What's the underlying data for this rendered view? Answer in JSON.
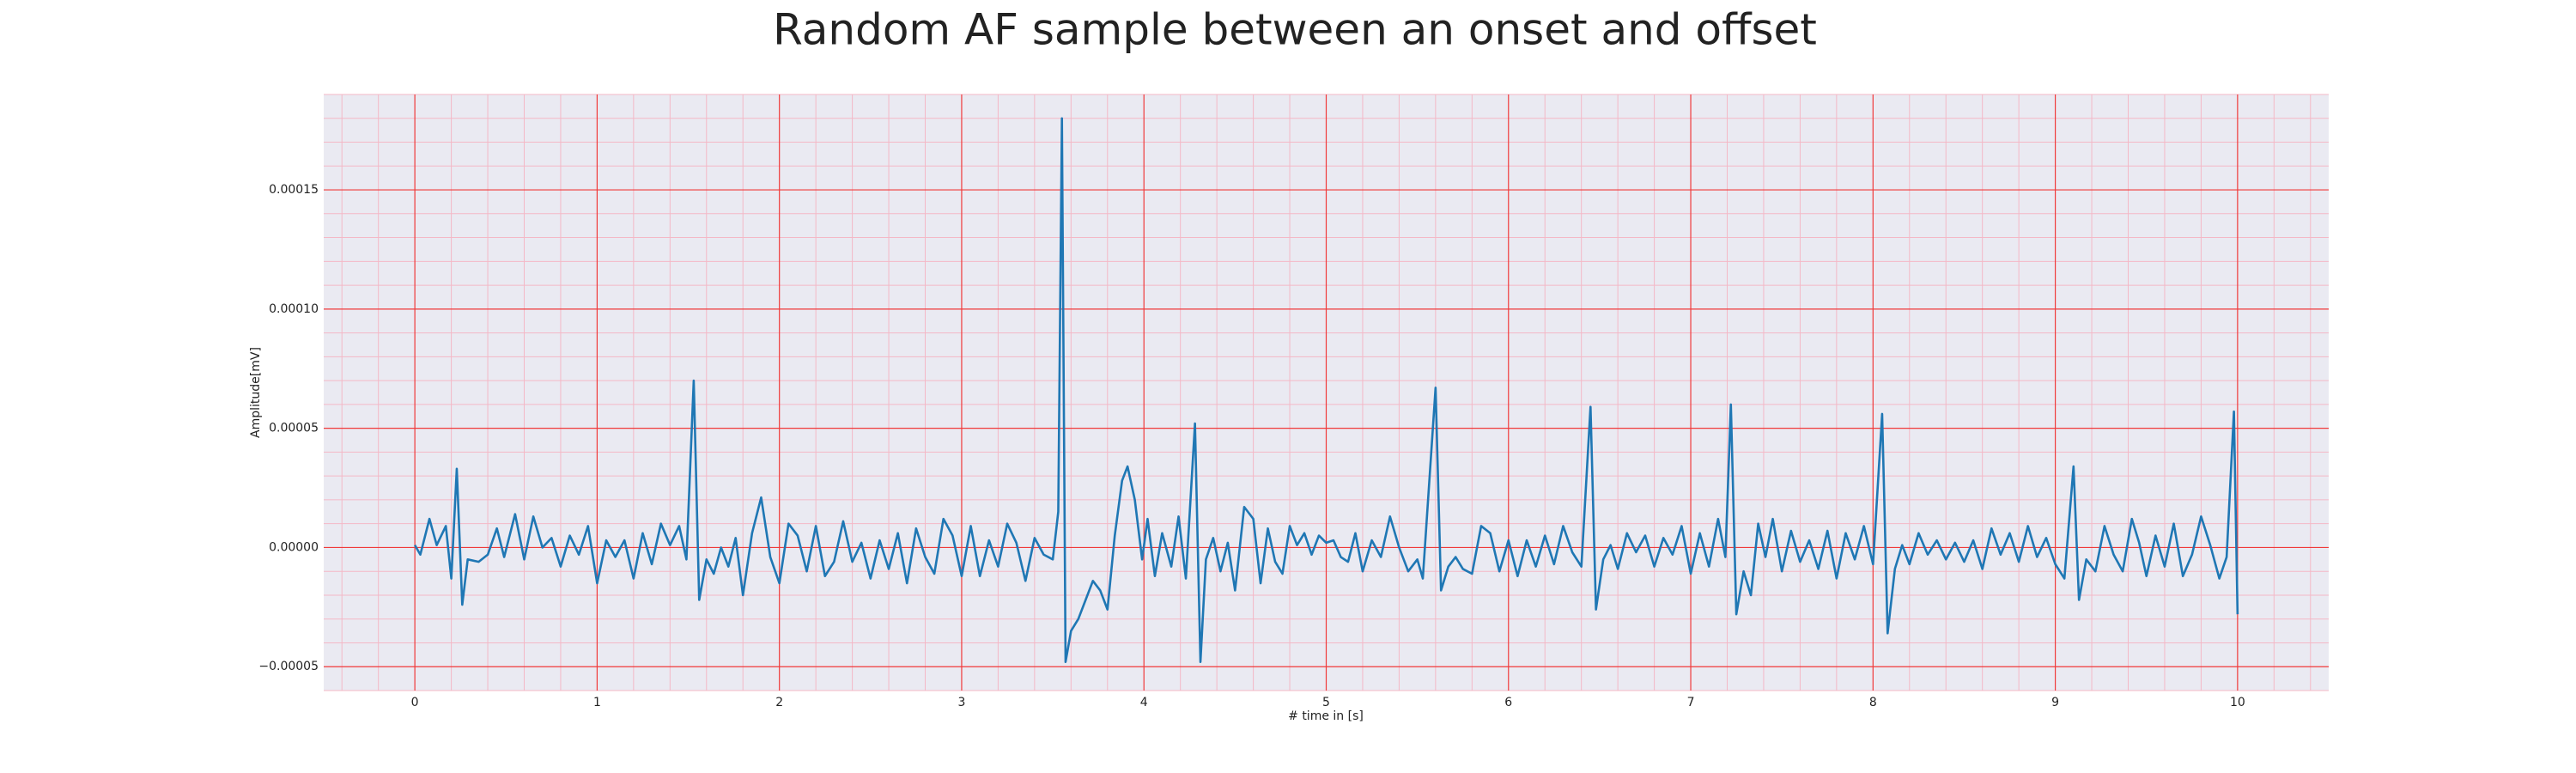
{
  "chart_data": {
    "type": "line",
    "title": "Random AF sample between an onset and offset",
    "xlabel": "# time in [s]",
    "ylabel": "Amplitude[mV]",
    "color": "#1f77b4",
    "grid": true,
    "xlim": [
      -0.5,
      10.5
    ],
    "ylim": [
      -6e-05,
      0.00019
    ],
    "xticks": [
      0,
      1,
      2,
      3,
      4,
      5,
      6,
      7,
      8,
      9,
      10
    ],
    "yticks": [
      {
        "value": -5e-05,
        "label": "−0.00005"
      },
      {
        "value": 0,
        "label": "0.00000"
      },
      {
        "value": 5e-05,
        "label": "0.00005"
      },
      {
        "value": 0.0001,
        "label": "0.00010"
      },
      {
        "value": 0.00015,
        "label": "0.00015"
      }
    ],
    "x": [
      0.0,
      0.03,
      0.08,
      0.12,
      0.17,
      0.2,
      0.23,
      0.26,
      0.29,
      0.35,
      0.4,
      0.45,
      0.49,
      0.55,
      0.6,
      0.65,
      0.7,
      0.75,
      0.8,
      0.85,
      0.9,
      0.95,
      1.0,
      1.05,
      1.1,
      1.15,
      1.2,
      1.25,
      1.3,
      1.35,
      1.4,
      1.45,
      1.49,
      1.53,
      1.56,
      1.6,
      1.64,
      1.68,
      1.72,
      1.76,
      1.8,
      1.85,
      1.9,
      1.95,
      2.0,
      2.05,
      2.1,
      2.15,
      2.2,
      2.25,
      2.3,
      2.35,
      2.4,
      2.45,
      2.5,
      2.55,
      2.6,
      2.65,
      2.7,
      2.75,
      2.8,
      2.85,
      2.9,
      2.95,
      3.0,
      3.05,
      3.1,
      3.15,
      3.2,
      3.25,
      3.3,
      3.35,
      3.4,
      3.45,
      3.5,
      3.53,
      3.55,
      3.57,
      3.6,
      3.64,
      3.68,
      3.72,
      3.76,
      3.8,
      3.84,
      3.88,
      3.91,
      3.95,
      3.99,
      4.02,
      4.06,
      4.1,
      4.15,
      4.19,
      4.23,
      4.28,
      4.31,
      4.34,
      4.38,
      4.42,
      4.46,
      4.5,
      4.55,
      4.6,
      4.64,
      4.68,
      4.72,
      4.76,
      4.8,
      4.84,
      4.88,
      4.92,
      4.96,
      5.0,
      5.04,
      5.08,
      5.12,
      5.16,
      5.2,
      5.25,
      5.3,
      5.35,
      5.4,
      5.45,
      5.5,
      5.53,
      5.6,
      5.63,
      5.67,
      5.71,
      5.75,
      5.8,
      5.85,
      5.9,
      5.95,
      6.0,
      6.05,
      6.1,
      6.15,
      6.2,
      6.25,
      6.3,
      6.35,
      6.4,
      6.45,
      6.48,
      6.52,
      6.56,
      6.6,
      6.65,
      6.7,
      6.75,
      6.8,
      6.85,
      6.9,
      6.95,
      7.0,
      7.05,
      7.1,
      7.15,
      7.19,
      7.22,
      7.25,
      7.29,
      7.33,
      7.37,
      7.41,
      7.45,
      7.5,
      7.55,
      7.6,
      7.65,
      7.7,
      7.75,
      7.8,
      7.85,
      7.9,
      7.95,
      8.0,
      8.05,
      8.08,
      8.12,
      8.16,
      8.2,
      8.25,
      8.3,
      8.35,
      8.4,
      8.45,
      8.5,
      8.55,
      8.6,
      8.65,
      8.7,
      8.75,
      8.8,
      8.85,
      8.9,
      8.95,
      9.0,
      9.05,
      9.1,
      9.13,
      9.17,
      9.22,
      9.27,
      9.32,
      9.37,
      9.42,
      9.46,
      9.5,
      9.55,
      9.6,
      9.65,
      9.7,
      9.75,
      9.8,
      9.85,
      9.9,
      9.94,
      9.98,
      10.0
    ],
    "values": [
      1e-06,
      -3e-06,
      1.2e-05,
      1e-06,
      9e-06,
      -1.3e-05,
      3.3e-05,
      -2.4e-05,
      -5e-06,
      -6e-06,
      -3e-06,
      8e-06,
      -4e-06,
      1.4e-05,
      -5e-06,
      1.3e-05,
      0,
      4e-06,
      -8e-06,
      5e-06,
      -3e-06,
      9e-06,
      -1.5e-05,
      3e-06,
      -4e-06,
      3e-06,
      -1.3e-05,
      6e-06,
      -7e-06,
      1e-05,
      1e-06,
      9e-06,
      -5e-06,
      7e-05,
      -2.2e-05,
      -5e-06,
      -1.1e-05,
      0,
      -8e-06,
      4e-06,
      -2e-05,
      6e-06,
      2.1e-05,
      -4e-06,
      -1.5e-05,
      1e-05,
      5e-06,
      -1e-05,
      9e-06,
      -1.2e-05,
      -6e-06,
      1.1e-05,
      -6e-06,
      2e-06,
      -1.3e-05,
      3e-06,
      -9e-06,
      6e-06,
      -1.5e-05,
      8e-06,
      -4e-06,
      -1.1e-05,
      1.2e-05,
      5e-06,
      -1.2e-05,
      9e-06,
      -1.2e-05,
      3e-06,
      -8e-06,
      1e-05,
      2e-06,
      -1.4e-05,
      4e-06,
      -3e-06,
      -5e-06,
      1.5e-05,
      0.00018,
      -4.8e-05,
      -3.5e-05,
      -3e-05,
      -2.2e-05,
      -1.4e-05,
      -1.8e-05,
      -2.6e-05,
      5e-06,
      2.8e-05,
      3.4e-05,
      2e-05,
      -5e-06,
      1.2e-05,
      -1.2e-05,
      6e-06,
      -8e-06,
      1.3e-05,
      -1.3e-05,
      5.2e-05,
      -4.8e-05,
      -5e-06,
      4e-06,
      -1e-05,
      2e-06,
      -1.8e-05,
      1.7e-05,
      1.2e-05,
      -1.5e-05,
      8e-06,
      -6e-06,
      -1.1e-05,
      9e-06,
      1e-06,
      6e-06,
      -3e-06,
      5e-06,
      2e-06,
      3e-06,
      -4e-06,
      -6e-06,
      6e-06,
      -1e-05,
      3e-06,
      -4e-06,
      1.3e-05,
      0,
      -1e-05,
      -5e-06,
      -1.3e-05,
      6.7e-05,
      -1.8e-05,
      -8e-06,
      -4e-06,
      -9e-06,
      -1.1e-05,
      9e-06,
      6e-06,
      -1e-05,
      3e-06,
      -1.2e-05,
      3e-06,
      -8e-06,
      5e-06,
      -7e-06,
      9e-06,
      -2e-06,
      -8e-06,
      5.9e-05,
      -2.6e-05,
      -5e-06,
      1e-06,
      -9e-06,
      6e-06,
      -2e-06,
      5e-06,
      -8e-06,
      4e-06,
      -3e-06,
      9e-06,
      -1.1e-05,
      6e-06,
      -8e-06,
      1.2e-05,
      -4e-06,
      6e-05,
      -2.8e-05,
      -1e-05,
      -2e-05,
      1e-05,
      -4e-06,
      1.2e-05,
      -1e-05,
      7e-06,
      -6e-06,
      3e-06,
      -9e-06,
      7e-06,
      -1.3e-05,
      6e-06,
      -5e-06,
      9e-06,
      -7e-06,
      5.6e-05,
      -3.6e-05,
      -9e-06,
      1e-06,
      -7e-06,
      6e-06,
      -3e-06,
      3e-06,
      -5e-06,
      2e-06,
      -6e-06,
      3e-06,
      -9e-06,
      8e-06,
      -3e-06,
      6e-06,
      -6e-06,
      9e-06,
      -4e-06,
      4e-06,
      -7e-06,
      -1.3e-05,
      3.4e-05,
      -2.2e-05,
      -5e-06,
      -1e-05,
      9e-06,
      -3e-06,
      -1e-05,
      1.2e-05,
      2e-06,
      -1.2e-05,
      5e-06,
      -8e-06,
      1e-05,
      -1.2e-05,
      -3e-06,
      1.3e-05,
      1e-06,
      -1.3e-05,
      -4e-06,
      5.7e-05,
      -2.8e-05
    ]
  }
}
